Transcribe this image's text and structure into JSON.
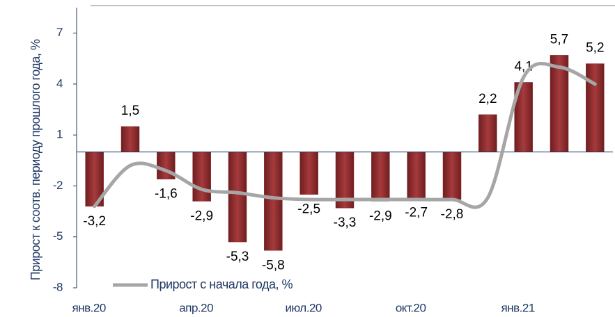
{
  "chart_data": {
    "type": "bar",
    "y_label": "Прирост к соотв. периоду прошлого года, %",
    "categories": [
      "янв.20",
      null,
      null,
      "апр.20",
      null,
      null,
      "июл.20",
      null,
      null,
      "окт.20",
      null,
      null,
      "янв.21",
      null,
      null
    ],
    "series": [
      {
        "name": null,
        "type": "bar",
        "color": "#8b2a2c",
        "values": [
          -3.2,
          1.5,
          -1.6,
          -2.9,
          -5.3,
          -5.8,
          -2.5,
          -3.3,
          -2.9,
          -2.7,
          -2.8,
          2.2,
          4.1,
          5.7,
          5.2
        ],
        "value_labels": [
          "-3,2",
          "1,5",
          "-1,6",
          "-2,9",
          "-5,3",
          "-5,8",
          "-2,5",
          "-3,3",
          "-2,9",
          "-2,7",
          "-2,8",
          "2,2",
          "4,1",
          "5,7",
          "5,2"
        ]
      },
      {
        "name": "Прирост с начала года, %",
        "type": "line",
        "color": "#a6a6a6",
        "values": [
          -3.2,
          -0.8,
          -1.1,
          -2.2,
          -2.4,
          -2.7,
          -2.8,
          -2.8,
          -2.8,
          -2.8,
          -2.8,
          -2.7,
          4.4,
          5.0,
          4.0
        ]
      }
    ],
    "ylim": [
      -8,
      8.5
    ],
    "yticks": [
      -8,
      -5,
      -2,
      1,
      4,
      7
    ],
    "grid": false
  }
}
